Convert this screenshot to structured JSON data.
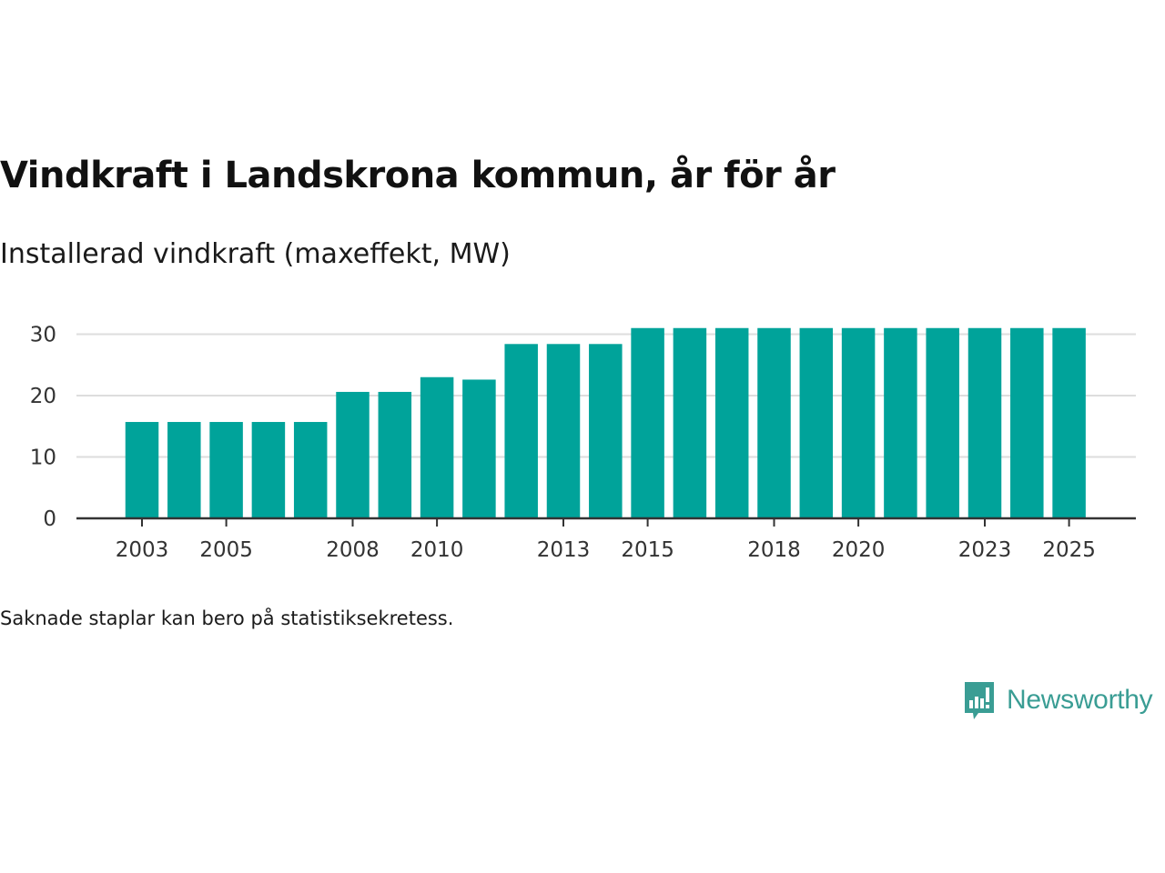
{
  "header": {
    "title": "Vindkraft i Landskrona kommun, år för år",
    "subtitle": "Installerad vindkraft (maxeffekt, MW)"
  },
  "footnote": "Saknade staplar kan bero på statistiksekretess.",
  "brand": {
    "name": "Newsworthy",
    "icon": "newsworthy-logo-icon",
    "color": "#3a9d94"
  },
  "chart_data": {
    "type": "bar",
    "title": "Vindkraft i Landskrona kommun, år för år",
    "ylabel": "Installerad vindkraft (maxeffekt, MW)",
    "xlabel": "",
    "bar_color": "#00a39a",
    "grid": true,
    "ylim": [
      0,
      32
    ],
    "yticks": [
      0,
      10,
      20,
      30
    ],
    "categories": [
      2003,
      2004,
      2005,
      2006,
      2007,
      2008,
      2009,
      2010,
      2011,
      2012,
      2013,
      2014,
      2015,
      2016,
      2017,
      2018,
      2019,
      2020,
      2021,
      2022,
      2023,
      2024,
      2025
    ],
    "values": [
      15.7,
      15.7,
      15.7,
      15.7,
      15.7,
      20.6,
      20.6,
      23.0,
      22.6,
      28.4,
      28.4,
      28.4,
      31.0,
      31.0,
      31.0,
      31.0,
      31.0,
      31.0,
      31.0,
      31.0,
      31.0,
      31.0,
      31.0
    ],
    "xtick_labels": [
      2003,
      2005,
      2008,
      2010,
      2013,
      2015,
      2018,
      2020,
      2023,
      2025
    ]
  }
}
